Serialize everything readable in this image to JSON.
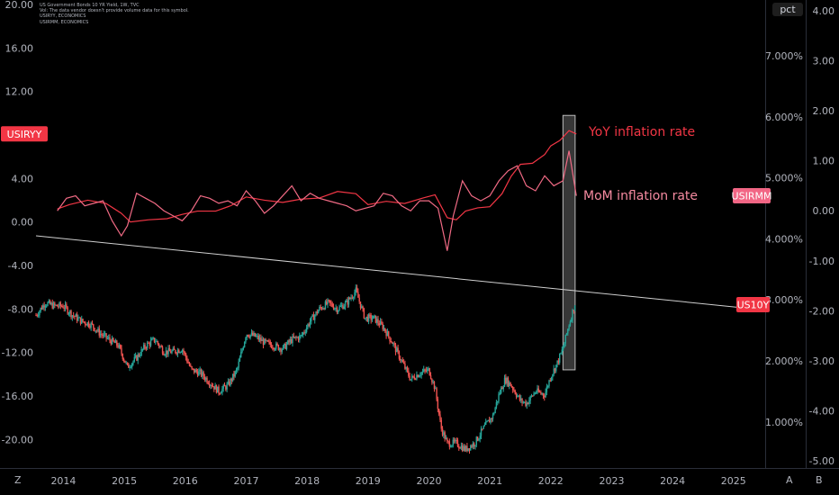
{
  "header": {
    "line1": "US Government Bonds 10 YR Yield, 1W, TVC",
    "line2": "Vol: The data vendor doesn't provide volume data for this symbol.",
    "line3": "USIRYY, ECONOMICS",
    "line4": "USIRMM, ECONOMICS"
  },
  "corner": {
    "left": "Z",
    "right_a": "A",
    "right_b": "B"
  },
  "unit_label": "pct",
  "colors": {
    "background": "#000000",
    "inflation_line": "#f23645",
    "yield_up": "#26a69a",
    "yield_down": "#ef5350",
    "trend_line": "#cfcfcf",
    "highlight": "#4a4a4a",
    "usiryy_badge": "#f23645",
    "usirmm_badge": "#f26685",
    "us10y_badge": "#f23645"
  },
  "chart_data": {
    "type": "line",
    "x_ticks": [
      "2014",
      "2015",
      "2016",
      "2017",
      "2018",
      "2019",
      "2020",
      "2021",
      "2022",
      "2023",
      "2024",
      "2025"
    ],
    "left_axis": {
      "ticks": [
        "20.00",
        "16.00",
        "12.00",
        "8.00",
        "4.00",
        "0.00",
        "-4.00",
        "-8.00",
        "-12.00",
        "-16.00",
        "-20.00"
      ],
      "range": [
        -21.8,
        20
      ]
    },
    "right_axis_pct": {
      "ticks": [
        "7.000%",
        "6.000%",
        "5.000%",
        "4.000%",
        "3.000%",
        "2.000%",
        "1.000%"
      ],
      "range": [
        0.3,
        7.6
      ]
    },
    "far_right_axis": {
      "ticks": [
        "4.00",
        "3.00",
        "2.00",
        "1.00",
        "0.00",
        "-1.00",
        "-2.00",
        "-3.00",
        "-4.00",
        "-5.00"
      ],
      "range": [
        -5.1,
        4.2
      ]
    },
    "badges": {
      "usiryy": "USIRYY",
      "usirmm": "USIRMM",
      "us10y": "US10Y"
    },
    "annotations": {
      "yoy": "YoY inflation rate",
      "mom": "MoM inflation rate"
    },
    "highlight_range": {
      "x": [
        2022.2,
        2022.4
      ],
      "y_left": [
        -13.6,
        9.8
      ]
    },
    "usiryy_yoy": {
      "x": [
        2013.9,
        2014.1,
        2014.4,
        2014.7,
        2014.95,
        2015.1,
        2015.4,
        2015.7,
        2015.95,
        2016.2,
        2016.5,
        2016.75,
        2017.0,
        2017.3,
        2017.6,
        2017.9,
        2018.2,
        2018.5,
        2018.8,
        2019.0,
        2019.3,
        2019.6,
        2019.9,
        2020.1,
        2020.3,
        2020.45,
        2020.6,
        2020.8,
        2021.0,
        2021.2,
        2021.35,
        2021.5,
        2021.7,
        2021.9,
        2022.0,
        2022.15,
        2022.3,
        2022.42
      ],
      "y": [
        1.2,
        1.6,
        2.0,
        1.7,
        0.8,
        0.0,
        0.2,
        0.3,
        0.7,
        1.0,
        1.0,
        1.5,
        2.3,
        2.0,
        1.8,
        2.1,
        2.2,
        2.8,
        2.6,
        1.6,
        1.9,
        1.7,
        2.2,
        2.5,
        0.4,
        0.2,
        1.0,
        1.3,
        1.4,
        2.6,
        4.2,
        5.3,
        5.4,
        6.2,
        7.0,
        7.5,
        8.4,
        8.1
      ]
    },
    "usirmm_mom": {
      "x": [
        2013.9,
        2014.05,
        2014.2,
        2014.35,
        2014.5,
        2014.65,
        2014.8,
        2014.95,
        2015.05,
        2015.2,
        2015.35,
        2015.5,
        2015.65,
        2015.8,
        2015.95,
        2016.1,
        2016.25,
        2016.4,
        2016.55,
        2016.7,
        2016.85,
        2017.0,
        2017.15,
        2017.3,
        2017.45,
        2017.6,
        2017.75,
        2017.9,
        2018.05,
        2018.2,
        2018.35,
        2018.5,
        2018.65,
        2018.8,
        2018.95,
        2019.1,
        2019.25,
        2019.4,
        2019.55,
        2019.7,
        2019.85,
        2020.0,
        2020.15,
        2020.3,
        2020.4,
        2020.55,
        2020.7,
        2020.85,
        2021.0,
        2021.15,
        2021.3,
        2021.45,
        2021.6,
        2021.75,
        2021.9,
        2022.05,
        2022.2,
        2022.3,
        2022.42
      ],
      "y": [
        0.0,
        0.25,
        0.3,
        0.1,
        0.15,
        0.2,
        -0.2,
        -0.5,
        -0.3,
        0.35,
        0.25,
        0.15,
        0.0,
        -0.1,
        -0.2,
        0.0,
        0.3,
        0.25,
        0.15,
        0.2,
        0.1,
        0.4,
        0.2,
        -0.05,
        0.1,
        0.3,
        0.5,
        0.2,
        0.35,
        0.25,
        0.2,
        0.15,
        0.1,
        0.0,
        0.05,
        0.1,
        0.35,
        0.3,
        0.1,
        0.0,
        0.2,
        0.2,
        0.05,
        -0.8,
        -0.1,
        0.6,
        0.3,
        0.2,
        0.3,
        0.6,
        0.8,
        0.9,
        0.5,
        0.4,
        0.7,
        0.5,
        0.6,
        1.2,
        0.3
      ]
    },
    "trend_line": {
      "x": [
        2013.55,
        2025.35
      ],
      "y_pct": [
        4.05,
        2.85
      ]
    },
    "us10y_weekly_close": {
      "x": [
        2013.55,
        2013.7,
        2013.85,
        2014.0,
        2014.15,
        2014.3,
        2014.45,
        2014.6,
        2014.75,
        2014.9,
        2015.05,
        2015.2,
        2015.35,
        2015.5,
        2015.65,
        2015.8,
        2015.95,
        2016.1,
        2016.25,
        2016.4,
        2016.55,
        2016.7,
        2016.85,
        2017.0,
        2017.15,
        2017.3,
        2017.45,
        2017.6,
        2017.75,
        2017.9,
        2018.05,
        2018.2,
        2018.35,
        2018.5,
        2018.65,
        2018.8,
        2018.95,
        2019.1,
        2019.25,
        2019.4,
        2019.55,
        2019.7,
        2019.85,
        2020.0,
        2020.1,
        2020.2,
        2020.3,
        2020.45,
        2020.6,
        2020.75,
        2020.9,
        2021.05,
        2021.15,
        2021.25,
        2021.35,
        2021.5,
        2021.6,
        2021.75,
        2021.9,
        2022.0,
        2022.1,
        2022.2,
        2022.3,
        2022.4
      ],
      "y": [
        2.75,
        2.95,
        2.9,
        2.9,
        2.75,
        2.65,
        2.6,
        2.45,
        2.35,
        2.25,
        1.9,
        2.05,
        2.25,
        2.35,
        2.15,
        2.15,
        2.2,
        1.85,
        1.8,
        1.65,
        1.5,
        1.6,
        1.85,
        2.45,
        2.4,
        2.3,
        2.25,
        2.2,
        2.35,
        2.4,
        2.65,
        2.85,
        2.95,
        2.85,
        2.95,
        3.15,
        2.7,
        2.7,
        2.55,
        2.3,
        2.0,
        1.7,
        1.8,
        1.85,
        1.55,
        0.9,
        0.65,
        0.65,
        0.55,
        0.65,
        0.9,
        1.1,
        1.45,
        1.7,
        1.6,
        1.35,
        1.3,
        1.5,
        1.45,
        1.75,
        1.95,
        2.2,
        2.6,
        2.95
      ]
    }
  }
}
